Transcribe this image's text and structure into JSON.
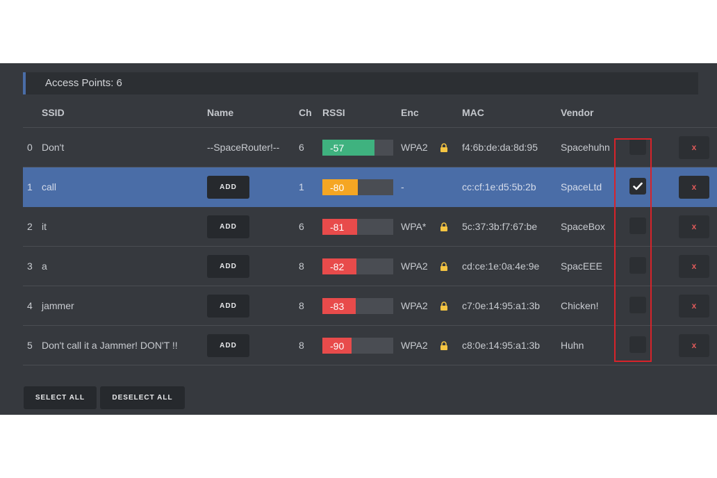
{
  "header": {
    "title": "Access Points: 6"
  },
  "table": {
    "columns": {
      "ssid": "SSID",
      "name": "Name",
      "ch": "Ch",
      "rssi": "RSSI",
      "enc": "Enc",
      "mac": "MAC",
      "vendor": "Vendor"
    },
    "rows": [
      {
        "id": "0",
        "ssid": "Don't",
        "name": "--SpaceRouter!--",
        "ch": "6",
        "rssi": "-57",
        "rssi_level": 0.74,
        "rssi_color": "#3fb27f",
        "enc": "WPA2",
        "locked": true,
        "mac": "f4:6b:de:da:8d:95",
        "vendor": "Spacehuhn",
        "selected": false,
        "delete_label": "x"
      },
      {
        "id": "1",
        "ssid": "call",
        "name": "ADD",
        "ch": "1",
        "rssi": "-80",
        "rssi_level": 0.5,
        "rssi_color": "#f5a623",
        "enc": "-",
        "locked": false,
        "mac": "cc:cf:1e:d5:5b:2b",
        "vendor": "SpaceLtd",
        "selected": true,
        "delete_label": "x"
      },
      {
        "id": "2",
        "ssid": "it",
        "name": "ADD",
        "ch": "6",
        "rssi": "-81",
        "rssi_level": 0.49,
        "rssi_color": "#e84b4b",
        "enc": "WPA*",
        "locked": true,
        "mac": "5c:37:3b:f7:67:be",
        "vendor": "SpaceBox",
        "selected": false,
        "delete_label": "x"
      },
      {
        "id": "3",
        "ssid": "a",
        "name": "ADD",
        "ch": "8",
        "rssi": "-82",
        "rssi_level": 0.48,
        "rssi_color": "#e84b4b",
        "enc": "WPA2",
        "locked": true,
        "mac": "cd:ce:1e:0a:4e:9e",
        "vendor": "SpacEEE",
        "selected": false,
        "delete_label": "x"
      },
      {
        "id": "4",
        "ssid": "jammer",
        "name": "ADD",
        "ch": "8",
        "rssi": "-83",
        "rssi_level": 0.47,
        "rssi_color": "#e84b4b",
        "enc": "WPA2",
        "locked": true,
        "mac": "c7:0e:14:95:a1:3b",
        "vendor": "Chicken!",
        "selected": false,
        "delete_label": "x"
      },
      {
        "id": "5",
        "ssid": "Don't call it a Jammer! DON'T !!",
        "name": "ADD",
        "ch": "8",
        "rssi": "-90",
        "rssi_level": 0.41,
        "rssi_color": "#e84b4b",
        "enc": "WPA2",
        "locked": true,
        "mac": "c8:0e:14:95:a1:3b",
        "vendor": "Huhn",
        "selected": false,
        "delete_label": "x"
      }
    ]
  },
  "footer": {
    "select_all": "SELECT ALL",
    "deselect_all": "DESELECT ALL"
  },
  "colors": {
    "accent": "#4a6da7",
    "panel": "#36393e",
    "highlight": "#d8232a",
    "lock": "#f5c542"
  }
}
